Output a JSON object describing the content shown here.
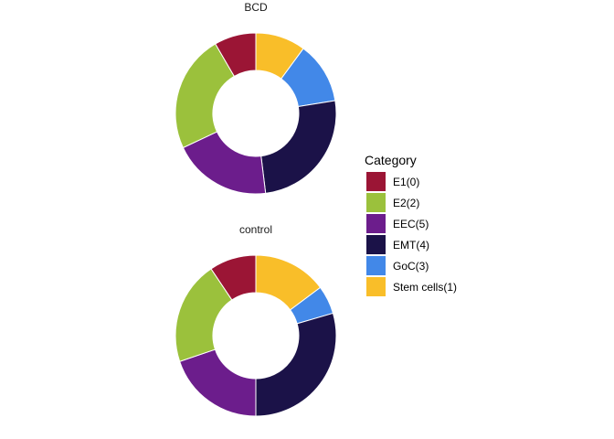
{
  "chart_data": [
    {
      "type": "donut",
      "title": "BCD",
      "categories": [
        "E1(0)",
        "E2(2)",
        "EEC(5)",
        "EMT(4)",
        "GoC(3)",
        "Stem cells(1)"
      ],
      "values": [
        0.08,
        0.225,
        0.19,
        0.244,
        0.118,
        0.096
      ]
    },
    {
      "type": "donut",
      "title": "control",
      "categories": [
        "E1(0)",
        "E2(2)",
        "EEC(5)",
        "EMT(4)",
        "GoC(3)",
        "Stem cells(1)"
      ],
      "values": [
        0.094,
        0.208,
        0.198,
        0.295,
        0.057,
        0.148
      ]
    }
  ],
  "legend": {
    "title": "Category",
    "placement": "right",
    "items": [
      {
        "label": "E1(0)",
        "color": "#9B1535"
      },
      {
        "label": "E2(2)",
        "color": "#9BC13C"
      },
      {
        "label": "EEC(5)",
        "color": "#6C1D8C"
      },
      {
        "label": "EMT(4)",
        "color": "#1B1248"
      },
      {
        "label": "GoC(3)",
        "color": "#4288E8"
      },
      {
        "label": "Stem cells(1)",
        "color": "#F9BE29"
      }
    ]
  }
}
